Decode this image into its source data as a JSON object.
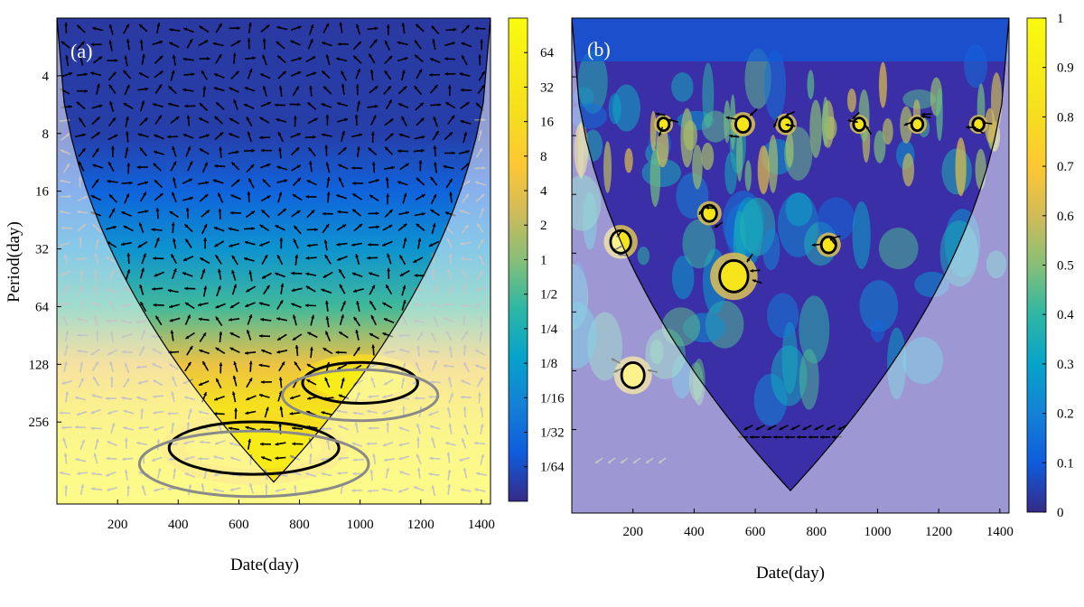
{
  "colors": {
    "cold": "#352a87",
    "mid": "#17b1a9",
    "hot": "#f9fb0e",
    "coi_shade": "#ffffff",
    "contour": "#000000",
    "arrow": "#000000",
    "arrow_coi": "#8a8a8a"
  },
  "chart_data": [
    {
      "type": "heatmap",
      "panel_label": "(a)",
      "xlabel": "Date(day)",
      "ylabel": "Period(day)",
      "x_ticks": [
        200,
        400,
        600,
        800,
        1000,
        1200,
        1400
      ],
      "x_tick_labels": [
        "200",
        "400",
        "600",
        "800",
        "1000",
        "1200",
        "1400"
      ],
      "xlim": [
        0,
        1430
      ],
      "y_scale": "log2",
      "y_ticks": [
        4,
        8,
        16,
        32,
        64,
        128,
        256
      ],
      "y_tick_labels": [
        "4",
        "8",
        "16",
        "32",
        "64",
        "128",
        "256"
      ],
      "ylim": [
        2,
        512
      ],
      "colorbar": {
        "scale": "log2",
        "ticks": [
          64,
          32,
          16,
          8,
          4,
          2,
          1,
          0.5,
          0.25,
          0.125,
          0.0625,
          0.03125,
          0.015625
        ],
        "tick_labels": [
          "64",
          "32",
          "16",
          "8",
          "4",
          "2",
          "1",
          "1/2",
          "1/4",
          "1/8",
          "1/16",
          "1/32",
          "1/64"
        ],
        "range": [
          0.0078,
          128
        ]
      },
      "power_profile": [
        {
          "period": 2,
          "level": 0.03
        },
        {
          "period": 8,
          "level": 0.04
        },
        {
          "period": 16,
          "level": 0.12
        },
        {
          "period": 32,
          "level": 0.25
        },
        {
          "period": 64,
          "level": 0.42
        },
        {
          "period": 96,
          "level": 0.55
        },
        {
          "period": 128,
          "level": 0.66
        },
        {
          "period": 200,
          "level": 0.8
        },
        {
          "period": 300,
          "level": 0.9
        },
        {
          "period": 512,
          "level": 0.95
        }
      ],
      "significance_regions": [
        {
          "x_center": 1000,
          "period_center": 160,
          "x_halfwidth": 190,
          "period_span": 0.35
        },
        {
          "x_center": 650,
          "period_center": 350,
          "x_halfwidth": 280,
          "period_span": 0.45
        }
      ]
    },
    {
      "type": "heatmap",
      "panel_label": "(b)",
      "xlabel": "Date(day)",
      "ylabel": "",
      "x_ticks": [
        200,
        400,
        600,
        800,
        1000,
        1200,
        1400
      ],
      "x_tick_labels": [
        "200",
        "400",
        "600",
        "800",
        "1000",
        "1200",
        "1400"
      ],
      "xlim": [
        0,
        1430
      ],
      "y_scale": "log2",
      "y_ticks": [
        4,
        8,
        16,
        32,
        64,
        128,
        256
      ],
      "y_tick_labels": [],
      "ylim": [
        2,
        512
      ],
      "colorbar": {
        "scale": "linear",
        "ticks": [
          1,
          0.9,
          0.8,
          0.7,
          0.6,
          0.5,
          0.4,
          0.3,
          0.2,
          0.1,
          0
        ],
        "tick_labels": [
          "1",
          "0.9",
          "0.8",
          "0.7",
          "0.6",
          "0.5",
          "0.4",
          "0.3",
          "0.2",
          "0.1",
          "0"
        ],
        "range": [
          0,
          1
        ]
      },
      "significance_regions": [
        {
          "x_center": 160,
          "period_center": 28,
          "r": 25
        },
        {
          "x_center": 450,
          "period_center": 20,
          "r": 18
        },
        {
          "x_center": 530,
          "period_center": 42,
          "r": 35
        },
        {
          "x_center": 840,
          "period_center": 29,
          "r": 18
        },
        {
          "x_center": 300,
          "period_center": 7,
          "r": 14
        },
        {
          "x_center": 560,
          "period_center": 7,
          "r": 18
        },
        {
          "x_center": 700,
          "period_center": 7,
          "r": 16
        },
        {
          "x_center": 940,
          "period_center": 7,
          "r": 14
        },
        {
          "x_center": 1130,
          "period_center": 7,
          "r": 14
        },
        {
          "x_center": 1330,
          "period_center": 7,
          "r": 14
        },
        {
          "x_center": 200,
          "period_center": 135,
          "r": 28
        }
      ]
    }
  ]
}
